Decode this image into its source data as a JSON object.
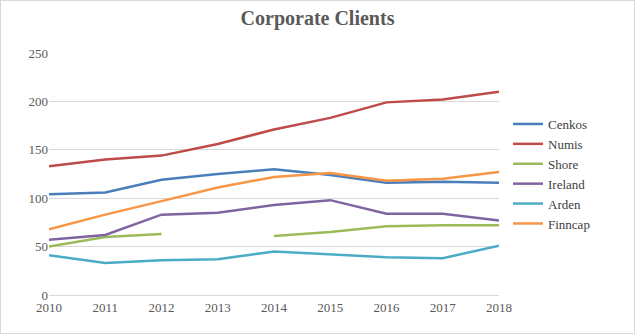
{
  "chart_data": {
    "type": "line",
    "title": "Corporate Clients",
    "categories": [
      "2010",
      "2011",
      "2012",
      "2013",
      "2014",
      "2015",
      "2016",
      "2017",
      "2018"
    ],
    "series": [
      {
        "name": "Cenkos",
        "color": "#4A7EBB",
        "values": [
          104,
          106,
          119,
          125,
          130,
          124,
          116,
          117,
          116
        ]
      },
      {
        "name": "Numis",
        "color": "#BE4B48",
        "values": [
          133,
          140,
          144,
          156,
          171,
          183,
          199,
          202,
          210
        ]
      },
      {
        "name": "Shore",
        "color": "#9BBB59",
        "values": [
          50,
          60,
          63,
          null,
          61,
          65,
          71,
          72,
          72
        ]
      },
      {
        "name": "Ireland",
        "color": "#8064A2",
        "values": [
          57,
          62,
          83,
          85,
          93,
          98,
          84,
          84,
          77
        ]
      },
      {
        "name": "Arden",
        "color": "#4BACC6",
        "values": [
          41,
          33,
          36,
          37,
          45,
          42,
          39,
          38,
          51
        ]
      },
      {
        "name": "Finncap",
        "color": "#F79646",
        "values": [
          68,
          83,
          97,
          111,
          122,
          126,
          118,
          120,
          127
        ]
      }
    ],
    "ylim": [
      0,
      250
    ],
    "yticks": [
      0,
      50,
      100,
      150,
      200,
      250
    ],
    "grid": true,
    "legend": "right"
  }
}
